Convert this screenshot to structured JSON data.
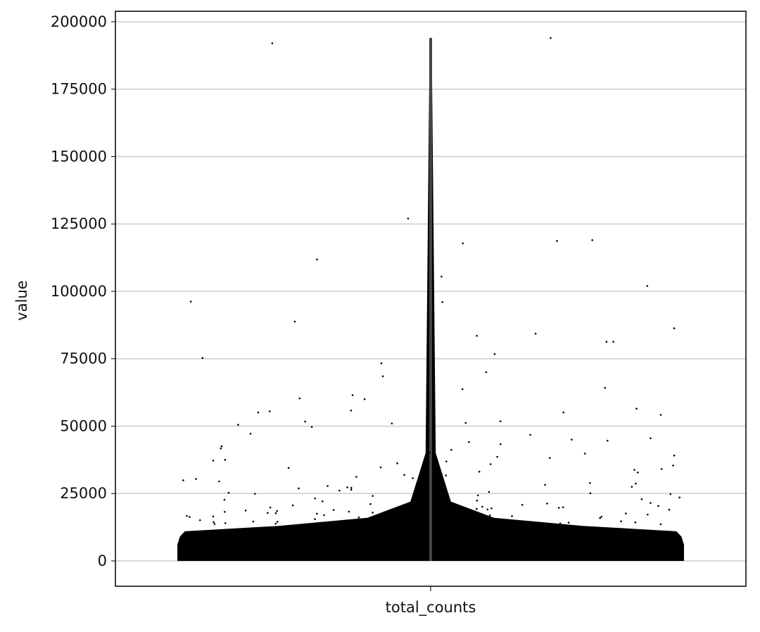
{
  "chart_data": {
    "type": "violin",
    "y_label": "value",
    "categories": [
      "total_counts"
    ],
    "ylim": [
      -9400,
      203900
    ],
    "yticks": [
      0,
      25000,
      50000,
      75000,
      100000,
      125000,
      150000,
      175000,
      200000
    ],
    "grid": true,
    "color": "#000000",
    "line_color": "#444444",
    "violin": {
      "y": [
        0,
        1000,
        3000,
        6000,
        9000,
        11000,
        13000,
        16000,
        22000,
        40000,
        194000
      ],
      "density": [
        1,
        1,
        1,
        1,
        0.99,
        0.97,
        0.6,
        0.25,
        0.08,
        0.02,
        0.004
      ]
    },
    "values": [
      192000,
      194000,
      117800,
      127000,
      111800,
      119000,
      118700,
      103500,
      96000,
      105500,
      96200,
      83500,
      70000,
      73300,
      64200,
      55800,
      51000,
      60300,
      86300,
      84300,
      81300,
      81300,
      75300,
      76700,
      102000,
      88800,
      55100,
      55100,
      56500,
      55500,
      61500,
      63700,
      60000,
      68500,
      51200,
      50500,
      51800,
      54200,
      51700,
      49700,
      45000,
      44600,
      43300,
      41700,
      40200,
      39800,
      38200,
      37500,
      36200,
      35400,
      33800,
      32500,
      31200,
      30100,
      29500,
      28700,
      27800,
      26400,
      25600,
      24300,
      23700,
      22100,
      21500,
      20400,
      47200,
      46800,
      42500,
      39100,
      36900,
      34700,
      33100,
      31900,
      30700,
      29900,
      28200,
      27300,
      26900,
      25100,
      24800,
      23200,
      22700,
      21900,
      21100,
      20800,
      19900,
      19500,
      19100,
      18700,
      18400,
      18100,
      17800,
      17500,
      17200,
      16900,
      16600,
      16400,
      16100,
      15900,
      15700,
      15500,
      15300,
      15100,
      14900,
      14700,
      14500,
      14300,
      14100,
      13900,
      13700,
      13500,
      45500,
      44100,
      41200,
      38600,
      35900,
      34100,
      32800,
      30400,
      28900,
      27500,
      26100,
      24900,
      23500,
      22400,
      21300,
      20100,
      19700,
      19300,
      18900,
      18500,
      18200,
      17900,
      17600,
      17300,
      17000,
      16700,
      16300,
      16000,
      15600,
      15200,
      14800,
      14400,
      14000,
      13600,
      37200,
      34500,
      31700,
      29100,
      27100,
      25300,
      24100,
      22900,
      21700,
      20600,
      19800,
      19000,
      18300,
      17700,
      17100,
      16500,
      15800,
      15400,
      14600,
      14200,
      13800,
      13400
    ]
  }
}
